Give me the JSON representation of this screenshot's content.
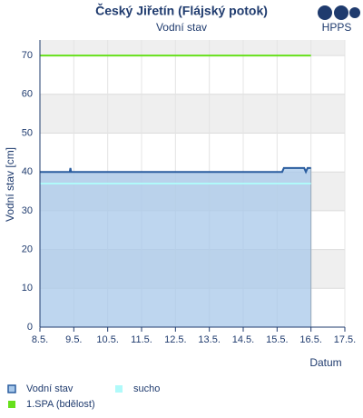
{
  "chart_data": {
    "type": "line",
    "title": "Český Jiřetín (Flájský potok)",
    "subtitle": "Vodní stav",
    "logo": "HPPS",
    "y_label": "Vodní stav [cm]",
    "x_label": "Datum",
    "xlim": [
      8,
      17
    ],
    "xticks": [
      {
        "value": 8,
        "label": "8.5."
      },
      {
        "value": 9,
        "label": "9.5."
      },
      {
        "value": 10,
        "label": "10.5."
      },
      {
        "value": 11,
        "label": "11.5."
      },
      {
        "value": 12,
        "label": "12.5."
      },
      {
        "value": 13,
        "label": "13.5."
      },
      {
        "value": 14,
        "label": "14.5."
      },
      {
        "value": 15,
        "label": "15.5."
      },
      {
        "value": 16,
        "label": "16.5."
      },
      {
        "value": 17,
        "label": "17.5."
      }
    ],
    "ylim": [
      0,
      74
    ],
    "yticks": [
      0,
      10,
      20,
      30,
      40,
      50,
      60,
      70
    ],
    "grid": true,
    "series": [
      {
        "name": "Vodní stav",
        "color": "#2a5d9f",
        "fill": "#a8c8ea",
        "area": true,
        "x": [
          8,
          8.88,
          8.9,
          8.92,
          15.15,
          15.2,
          15.5,
          15.55,
          15.8,
          15.85,
          15.9,
          16
        ],
        "values": [
          40,
          40,
          41,
          40,
          40,
          41,
          41,
          41,
          41,
          40,
          41,
          41
        ]
      },
      {
        "name": "sucho",
        "color": "#b0fafa",
        "x": [
          8,
          16
        ],
        "values": [
          37,
          37
        ]
      },
      {
        "name": "1.SPA (bdělost)",
        "color": "#66e01b",
        "x": [
          8,
          16
        ],
        "values": [
          70,
          70
        ]
      }
    ]
  }
}
